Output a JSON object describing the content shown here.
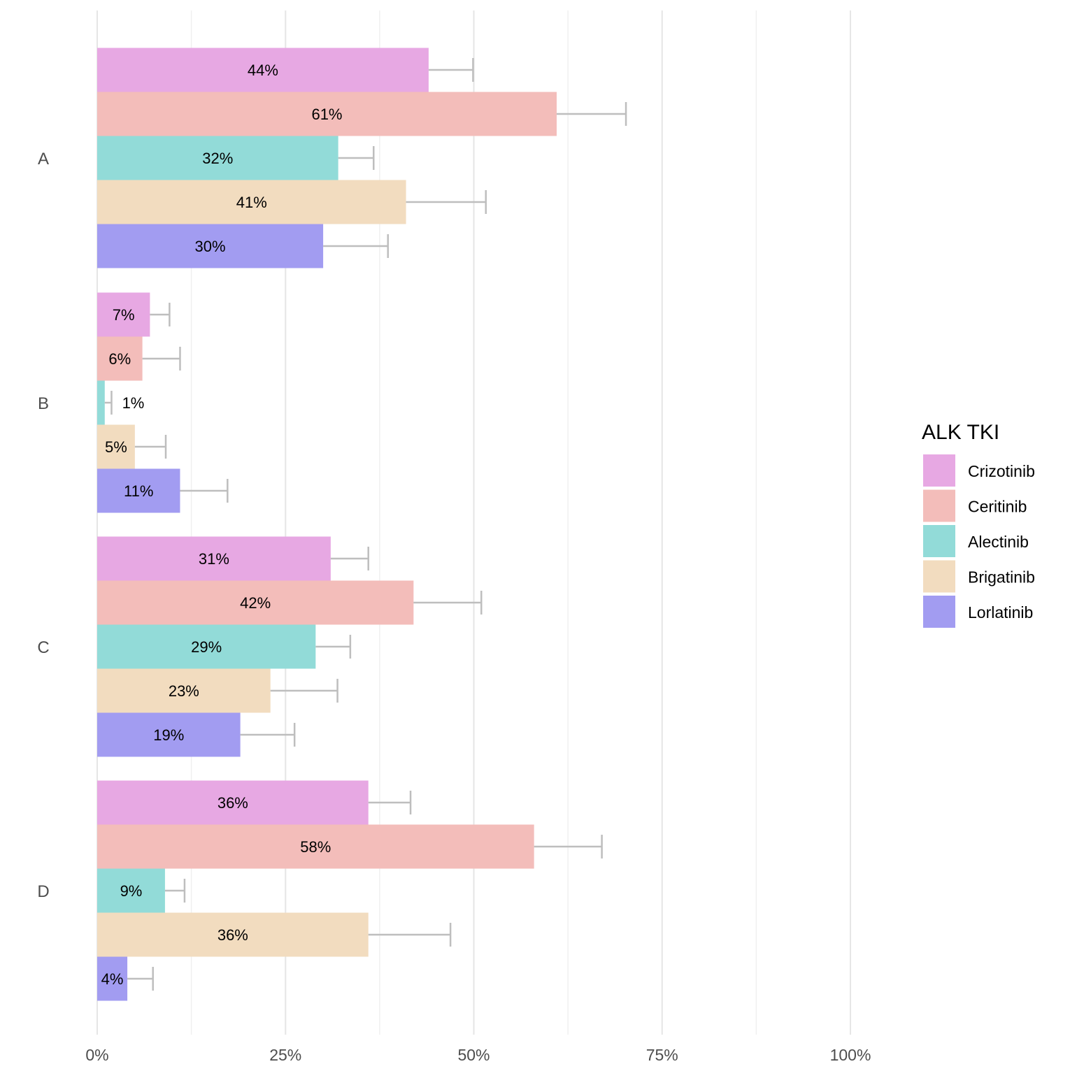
{
  "chart_data": {
    "type": "bar",
    "orientation": "horizontal",
    "categories": [
      "A",
      "B",
      "C",
      "D"
    ],
    "xlim": [
      0,
      100
    ],
    "x_ticks": [
      "0%",
      "25%",
      "50%",
      "75%",
      "100%"
    ],
    "x_tick_values": [
      0,
      25,
      50,
      75,
      100
    ],
    "grid": true,
    "legend": {
      "title": "ALK TKI",
      "placement": "right"
    },
    "series": [
      {
        "name": "Crizotinib",
        "color": "#E7A8E3",
        "values": [
          44,
          7,
          31,
          36
        ],
        "labels": [
          "44%",
          "7%",
          "31%",
          "36%"
        ],
        "error_upper": [
          49.9,
          9.6,
          36.0,
          41.6
        ]
      },
      {
        "name": "Ceritinib",
        "color": "#F3BDBA",
        "values": [
          61,
          6,
          42,
          58
        ],
        "labels": [
          "61%",
          "6%",
          "42%",
          "58%"
        ],
        "error_upper": [
          70.2,
          11.0,
          51.0,
          67.0
        ]
      },
      {
        "name": "Alectinib",
        "color": "#92DBD8",
        "values": [
          32,
          1,
          29,
          9
        ],
        "labels": [
          "32%",
          "1%",
          "29%",
          "9%"
        ],
        "error_upper": [
          36.7,
          1.9,
          33.6,
          11.6
        ]
      },
      {
        "name": "Brigatinib",
        "color": "#F2DCBF",
        "values": [
          41,
          5,
          23,
          36
        ],
        "labels": [
          "41%",
          "5%",
          "23%",
          "36%"
        ],
        "error_upper": [
          51.6,
          9.1,
          31.9,
          46.9
        ]
      },
      {
        "name": "Lorlatinib",
        "color": "#A29CF1",
        "values": [
          30,
          11,
          19,
          4
        ],
        "labels": [
          "30%",
          "11%",
          "19%",
          "4%"
        ],
        "error_upper": [
          38.6,
          17.3,
          26.2,
          7.4
        ]
      }
    ],
    "error_bar_color": "#BEBEBE"
  }
}
